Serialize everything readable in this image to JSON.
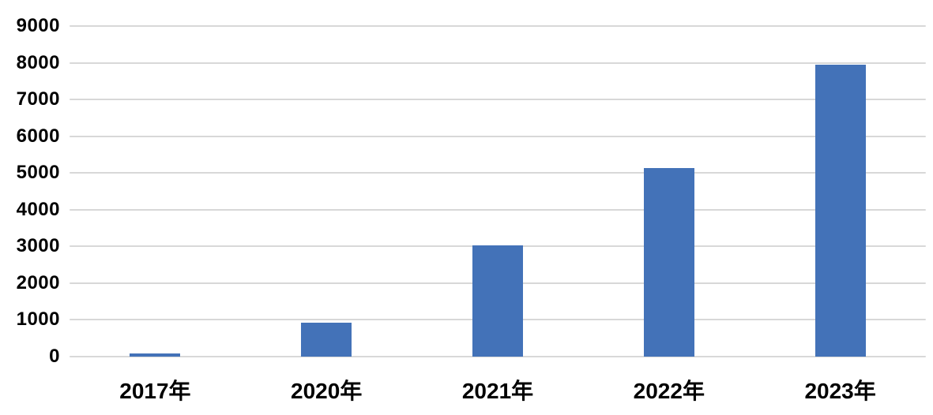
{
  "chart_data": {
    "type": "bar",
    "title": "",
    "xlabel": "",
    "ylabel": "",
    "categories": [
      "2017年",
      "2020年",
      "2021年",
      "2022年",
      "2023年"
    ],
    "values": [
      80,
      920,
      3030,
      5140,
      7950
    ],
    "ylim": [
      0,
      9000
    ],
    "ytick_step": 1000,
    "ytick_labels": [
      "0",
      "1000",
      "2000",
      "3000",
      "4000",
      "5000",
      "6000",
      "7000",
      "8000",
      "9000"
    ],
    "grid": "horizontal",
    "legend_position": "none",
    "bar_color": "#4372b8",
    "gridline_color": "#d8d8d8",
    "label_color": "#000000",
    "background_color": "#ffffff"
  }
}
